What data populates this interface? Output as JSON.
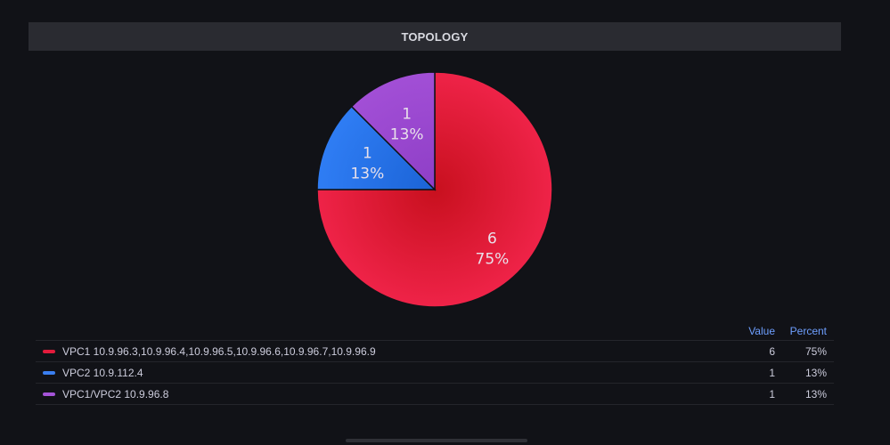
{
  "panel": {
    "title": "TOPOLOGY"
  },
  "legend": {
    "value_header": "Value",
    "percent_header": "Percent"
  },
  "chart_data": {
    "type": "pie",
    "title": "TOPOLOGY",
    "legend_placement": "bottom",
    "slices": [
      {
        "name": "VPC1 10.9.96.3,10.9.96.4,10.9.96.5,10.9.96.6,10.9.96.7,10.9.96.9",
        "value": 6,
        "percent": "75%",
        "color": "#e31b3c",
        "color_light": "#ef2348",
        "color_dark": "#c8101e"
      },
      {
        "name": "VPC2 10.9.112.4",
        "value": 1,
        "percent": "13%",
        "color": "#3a7ff0",
        "color_light": "#2f7df4",
        "color_dark": "#1b63d6"
      },
      {
        "name": "VPC1/VPC2 10.9.96.8",
        "value": 1,
        "percent": "13%",
        "color": "#a554d8",
        "color_light": "#a24fd6",
        "color_dark": "#8e3ec6"
      }
    ]
  }
}
